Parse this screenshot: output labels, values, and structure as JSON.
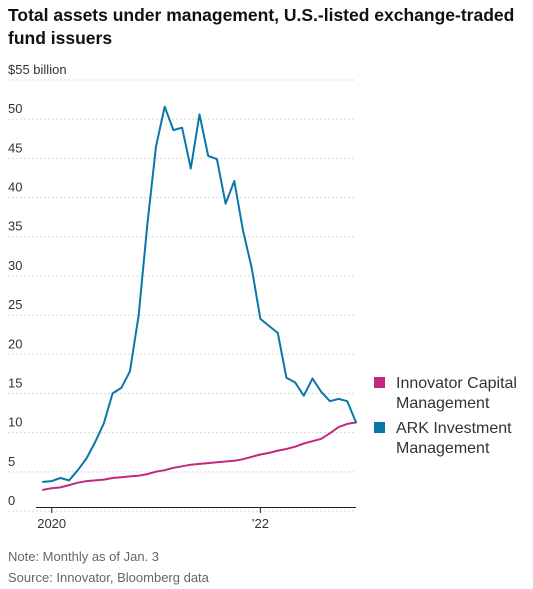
{
  "title": "Total assets under management, U.S.-listed exchange-traded fund issuers",
  "note": "Note: Monthly as of Jan. 3",
  "source": "Source: Innovator, Bloomberg data",
  "chart_data": {
    "type": "line",
    "title": "Total assets under management, U.S.-listed exchange-traded fund issuers",
    "ylabel": "$55 billion",
    "ylim": [
      0,
      55
    ],
    "xlim": [
      -1,
      35
    ],
    "y_ticks": [
      0,
      5,
      10,
      15,
      20,
      25,
      30,
      35,
      40,
      45,
      50
    ],
    "y_tick_labels": [
      "0",
      "5",
      "10",
      "15",
      "20",
      "25",
      "30",
      "35",
      "40",
      "45",
      "50"
    ],
    "y_top_label": "$55 billion",
    "x_ticks": [
      0,
      24
    ],
    "x_tick_labels": [
      "2020",
      "’22"
    ],
    "grid": true,
    "legend_position": "right",
    "x": [
      -1,
      0,
      1,
      2,
      3,
      4,
      5,
      6,
      7,
      8,
      9,
      10,
      11,
      12,
      13,
      14,
      15,
      16,
      17,
      18,
      19,
      20,
      21,
      22,
      23,
      24,
      25,
      26,
      27,
      28,
      29,
      30,
      31,
      32,
      33,
      34,
      35
    ],
    "series": [
      {
        "name": "Innovator Capital Management",
        "color": "#c2297a",
        "values": [
          2.2,
          2.4,
          2.5,
          2.8,
          3.1,
          3.3,
          3.4,
          3.5,
          3.7,
          3.8,
          3.9,
          4.0,
          4.2,
          4.5,
          4.7,
          5.0,
          5.2,
          5.4,
          5.5,
          5.6,
          5.7,
          5.8,
          5.9,
          6.1,
          6.4,
          6.7,
          6.9,
          7.2,
          7.4,
          7.7,
          8.1,
          8.4,
          8.7,
          9.4,
          10.2,
          10.6,
          10.8
        ]
      },
      {
        "name": "ARK Investment Management",
        "color": "#0b76a8",
        "values": [
          3.2,
          3.3,
          3.7,
          3.4,
          4.7,
          6.2,
          8.3,
          10.7,
          14.5,
          15.2,
          17.3,
          24.4,
          36.0,
          46.0,
          51.1,
          48.1,
          48.4,
          43.2,
          50.1,
          44.8,
          44.4,
          38.7,
          41.6,
          35.3,
          30.5,
          24.0,
          23.1,
          22.2,
          16.5,
          15.9,
          14.2,
          16.4,
          14.7,
          13.5,
          13.8,
          13.5,
          10.8
        ]
      }
    ]
  }
}
